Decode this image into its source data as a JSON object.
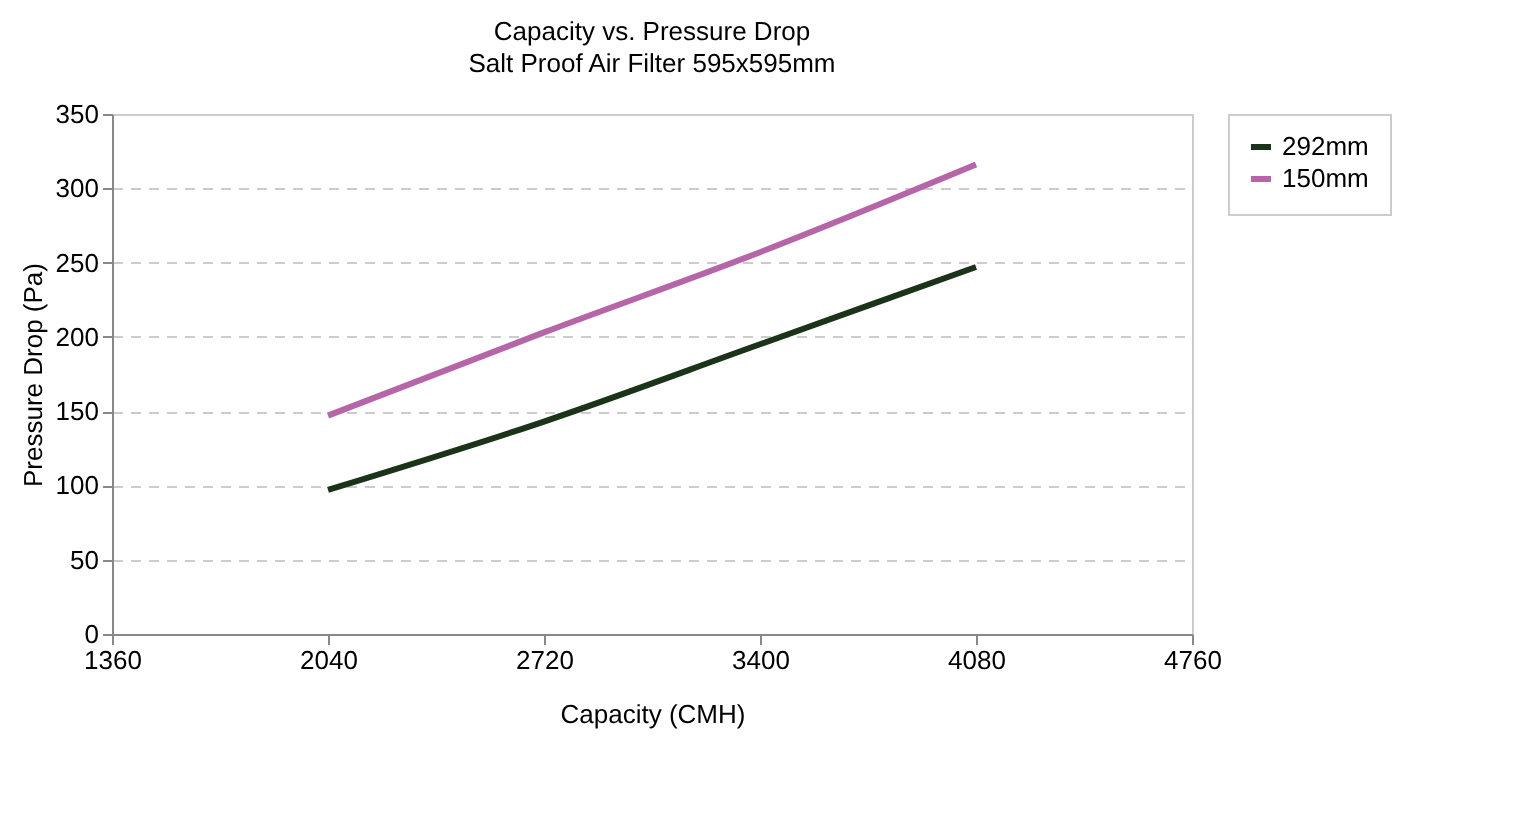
{
  "chart_data": {
    "type": "line",
    "title": "Capacity vs. Pressure Drop",
    "subtitle": "Salt Proof Air Filter 595x595mm",
    "xlabel": "Capacity (CMH)",
    "ylabel": "Pressure Drop (Pa)",
    "x": [
      2040,
      2720,
      3400,
      4080
    ],
    "series": [
      {
        "name": "292mm",
        "color": "#1a3319",
        "values": [
          97,
          143,
          195,
          247
        ]
      },
      {
        "name": "150mm",
        "color": "#b565a8",
        "values": [
          147,
          203,
          257,
          316
        ]
      }
    ],
    "xlim": [
      1360,
      4760
    ],
    "xticks": [
      1360,
      2040,
      2720,
      3400,
      4080,
      4760
    ],
    "ylim": [
      0,
      350
    ],
    "yticks": [
      0,
      50,
      100,
      150,
      200,
      250,
      300,
      350
    ],
    "grid": "y",
    "legend": "right",
    "marker": "none",
    "line_style": "solid"
  }
}
